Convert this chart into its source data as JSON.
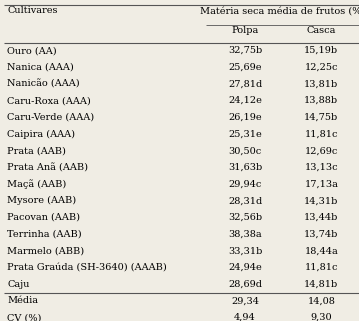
{
  "header_col": "Cultivares",
  "header_main": "Matéria seca média de frutos (%)",
  "header_sub1": "Polpa",
  "header_sub2": "Casca",
  "rows": [
    [
      "Ouro (AA)",
      "32,75b",
      "15,19b"
    ],
    [
      "Nanica (AAA)",
      "25,69e",
      "12,25c"
    ],
    [
      "Nanicão (AAA)",
      "27,81d",
      "13,81b"
    ],
    [
      "Caru-Roxa (AAA)",
      "24,12e",
      "13,88b"
    ],
    [
      "Caru-Verde (AAA)",
      "26,19e",
      "14,75b"
    ],
    [
      "Caipira (AAA)",
      "25,31e",
      "11,81c"
    ],
    [
      "Prata (AAB)",
      "30,50c",
      "12,69c"
    ],
    [
      "Prata Anã (AAB)",
      "31,63b",
      "13,13c"
    ],
    [
      "Maçã (AAB)",
      "29,94c",
      "17,13a"
    ],
    [
      "Mysore (AAB)",
      "28,31d",
      "14,31b"
    ],
    [
      "Pacovan (AAB)",
      "32,56b",
      "13,44b"
    ],
    [
      "Terrinha (AAB)",
      "38,38a",
      "13,74b"
    ],
    [
      "Marmelo (ABB)",
      "33,31b",
      "18,44a"
    ],
    [
      "Prata Graúda (SH-3640) (AAAB)",
      "24,94e",
      "11,81c"
    ],
    [
      "Caju",
      "28,69d",
      "14,81b"
    ]
  ],
  "footer_rows": [
    [
      "Média",
      "29,34",
      "14,08"
    ],
    [
      "CV (%)",
      "4,94",
      "9,30"
    ]
  ],
  "bg_color": "#f0ede4",
  "line_color": "#555555",
  "font_size": 7.0,
  "figsize": [
    3.59,
    3.21
  ],
  "dpi": 100
}
